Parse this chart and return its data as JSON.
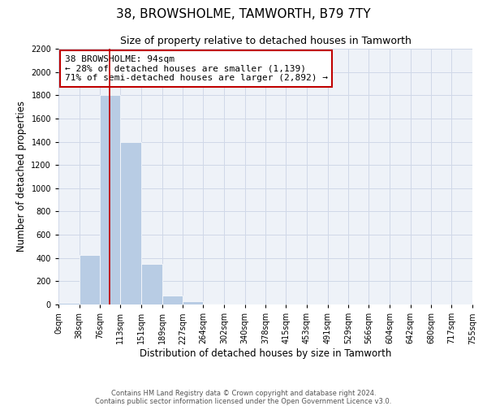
{
  "title": "38, BROWSHOLME, TAMWORTH, B79 7TY",
  "subtitle": "Size of property relative to detached houses in Tamworth",
  "xlabel": "Distribution of detached houses by size in Tamworth",
  "ylabel": "Number of detached properties",
  "footer_lines": [
    "Contains HM Land Registry data © Crown copyright and database right 2024.",
    "Contains public sector information licensed under the Open Government Licence v3.0."
  ],
  "annotation_title": "38 BROWSHOLME: 94sqm",
  "annotation_line1": "← 28% of detached houses are smaller (1,139)",
  "annotation_line2": "71% of semi-detached houses are larger (2,892) →",
  "property_size_sqm": 94,
  "bar_edges": [
    0,
    38,
    76,
    113,
    151,
    189,
    227,
    264,
    302,
    340,
    378,
    415,
    453,
    491,
    529,
    566,
    604,
    642,
    680,
    717,
    755
  ],
  "bar_heights": [
    15,
    425,
    1800,
    1400,
    350,
    80,
    25,
    5,
    0,
    0,
    0,
    0,
    0,
    0,
    0,
    0,
    0,
    0,
    0,
    0
  ],
  "bar_color": "#b8cce4",
  "bar_edge_color": "#ffffff",
  "vline_x": 94,
  "vline_color": "#c00000",
  "annotation_box_edge_color": "#c00000",
  "annotation_box_face_color": "#ffffff",
  "ylim": [
    0,
    2200
  ],
  "yticks": [
    0,
    200,
    400,
    600,
    800,
    1000,
    1200,
    1400,
    1600,
    1800,
    2000,
    2200
  ],
  "grid_color": "#d0d8e8",
  "bg_color": "#eef2f8",
  "title_fontsize": 11,
  "subtitle_fontsize": 9,
  "axis_label_fontsize": 8.5,
  "tick_fontsize": 7,
  "annotation_fontsize": 8,
  "footer_fontsize": 6
}
